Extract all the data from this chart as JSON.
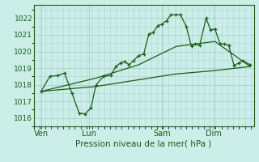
{
  "bg_color": "#cceee8",
  "grid_color": "#aad4ce",
  "line_color": "#1a5c1a",
  "xlabel": "Pression niveau de la mer( hPa )",
  "ylim": [
    1015.5,
    1022.8
  ],
  "yticks": [
    1016,
    1017,
    1018,
    1019,
    1020,
    1021,
    1022
  ],
  "day_labels": [
    "Ven",
    "Lun",
    "Sam",
    "Dim"
  ],
  "day_positions": [
    10,
    75,
    175,
    245
  ],
  "xlim": [
    0,
    300
  ],
  "series1": [
    [
      10,
      1017.6
    ],
    [
      22,
      1018.5
    ],
    [
      32,
      1018.55
    ],
    [
      42,
      1018.7
    ],
    [
      52,
      1017.5
    ],
    [
      62,
      1016.3
    ],
    [
      70,
      1016.25
    ],
    [
      78,
      1016.6
    ],
    [
      85,
      1018.0
    ],
    [
      95,
      1018.5
    ],
    [
      105,
      1018.55
    ],
    [
      112,
      1019.1
    ],
    [
      118,
      1019.3
    ],
    [
      124,
      1019.4
    ],
    [
      130,
      1019.2
    ],
    [
      136,
      1019.45
    ],
    [
      143,
      1019.75
    ],
    [
      150,
      1019.85
    ],
    [
      157,
      1021.05
    ],
    [
      163,
      1021.15
    ],
    [
      169,
      1021.55
    ],
    [
      175,
      1021.65
    ],
    [
      181,
      1021.85
    ],
    [
      187,
      1022.2
    ],
    [
      194,
      1022.2
    ],
    [
      200,
      1022.2
    ],
    [
      208,
      1021.5
    ],
    [
      215,
      1020.3
    ],
    [
      220,
      1020.45
    ],
    [
      226,
      1020.35
    ],
    [
      235,
      1022.0
    ],
    [
      241,
      1021.3
    ],
    [
      247,
      1021.35
    ],
    [
      254,
      1020.45
    ],
    [
      260,
      1020.45
    ],
    [
      266,
      1020.35
    ],
    [
      273,
      1019.15
    ],
    [
      279,
      1019.3
    ],
    [
      285,
      1019.45
    ],
    [
      295,
      1019.2
    ]
  ],
  "series2": [
    [
      10,
      1017.6
    ],
    [
      85,
      1017.9
    ],
    [
      143,
      1018.3
    ],
    [
      194,
      1018.65
    ],
    [
      247,
      1018.85
    ],
    [
      295,
      1019.1
    ]
  ],
  "series3": [
    [
      10,
      1017.6
    ],
    [
      85,
      1018.4
    ],
    [
      143,
      1019.2
    ],
    [
      194,
      1020.3
    ],
    [
      247,
      1020.6
    ],
    [
      295,
      1019.1
    ]
  ]
}
